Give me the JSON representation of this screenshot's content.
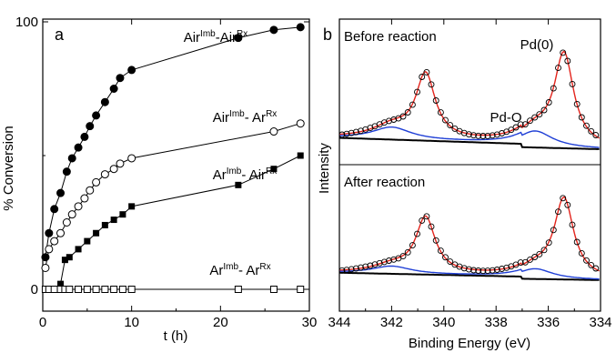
{
  "chart_data": [
    {
      "panel": "a",
      "type": "scatter",
      "xlabel": "t (h)",
      "ylabel": "% Conversion",
      "xlim": [
        0,
        30
      ],
      "ylim": [
        0,
        100
      ],
      "xticks": [
        "0",
        "10",
        "20",
        "30"
      ],
      "yticks": [
        "0",
        "100"
      ],
      "series": [
        {
          "name": "Air^Imb-Air^Rx",
          "label_base1": "Air",
          "label_sup1": "Imb",
          "label_base2": "-Air",
          "label_sup2": "Rx",
          "marker": "filled-circle",
          "x": [
            0.3,
            0.7,
            1.3,
            2.0,
            2.7,
            3.3,
            4.0,
            4.7,
            5.3,
            6.0,
            7.0,
            8.0,
            8.7,
            10.0,
            22.0,
            26.0,
            29.0
          ],
          "y": [
            12,
            21,
            30,
            36,
            44,
            49,
            53,
            57,
            61,
            65,
            70,
            75,
            79,
            82,
            94,
            97,
            98
          ]
        },
        {
          "name": "Air^Imb- Ar^Rx",
          "label_base1": "Air",
          "label_sup1": "Imb",
          "label_base2": "- Ar",
          "label_sup2": "Rx",
          "marker": "open-circle",
          "x": [
            0.3,
            0.7,
            1.3,
            2.0,
            2.7,
            3.3,
            4.0,
            4.7,
            5.3,
            6.0,
            7.0,
            8.0,
            8.7,
            10.0,
            26.0,
            29.0
          ],
          "y": [
            8,
            15,
            18,
            21,
            25,
            28,
            31,
            34,
            37,
            40,
            43,
            45,
            47,
            49,
            59,
            62
          ]
        },
        {
          "name": "Ar^Imb- Air^Rx",
          "label_base1": "Ar",
          "label_sup1": "Imb",
          "label_base2": "- Air",
          "label_sup2": "Rx",
          "marker": "filled-square",
          "x": [
            2.0,
            2.5,
            3.0,
            4.0,
            5.0,
            6.0,
            7.0,
            8.0,
            9.0,
            10.0,
            22.0,
            26.0,
            29.0
          ],
          "y": [
            2,
            11,
            12,
            15,
            18,
            21,
            24,
            26,
            28,
            31,
            39,
            45,
            50
          ]
        },
        {
          "name": "Ar^Imb- Ar^Rx",
          "label_base1": "Ar",
          "label_sup1": "Imb",
          "label_base2": "- Ar",
          "label_sup2": "Rx",
          "marker": "open-square",
          "x": [
            0.3,
            0.7,
            1.3,
            2.0,
            2.5,
            3.0,
            4.0,
            5.0,
            6.0,
            7.0,
            8.0,
            9.0,
            10.0,
            22.0,
            26.0,
            29.0
          ],
          "y": [
            0,
            0,
            0,
            0,
            0,
            0,
            0,
            0,
            0,
            0,
            0,
            0,
            0,
            0,
            0,
            0
          ]
        }
      ]
    },
    {
      "panel": "b",
      "type": "line",
      "xlabel": "Binding Energy (eV)",
      "ylabel": "Intensity",
      "xlim": [
        344,
        334
      ],
      "x_reversed": true,
      "xticks": [
        "344",
        "342",
        "340",
        "338",
        "336",
        "334"
      ],
      "spectra": [
        {
          "title": "Before reaction",
          "peak_labels": [
            "Pd(0)",
            "Pd-O"
          ],
          "pd0_peaks_eV": [
            340.7,
            335.4
          ],
          "pdo_peaks_eV": [
            342.0,
            336.5
          ],
          "colors": {
            "envelope": "#e3231b",
            "pdo_component": "#1f3fd6",
            "background": "#000000",
            "data": "#000000"
          }
        },
        {
          "title": "After reaction",
          "peak_labels": [],
          "pd0_peaks_eV": [
            340.7,
            335.4
          ],
          "pdo_peaks_eV": [
            342.0,
            336.5
          ],
          "colors": {
            "envelope": "#e3231b",
            "pdo_component": "#1f3fd6",
            "background": "#000000",
            "data": "#000000"
          }
        }
      ]
    }
  ]
}
